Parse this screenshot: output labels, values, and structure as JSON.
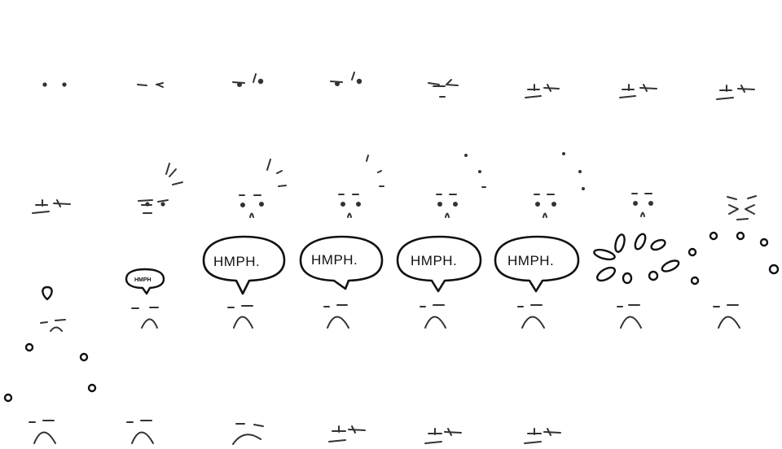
{
  "sprite_sheet": {
    "rows": 4,
    "columns": 8,
    "frame_count": 30,
    "colors": {
      "background": "#ffffff",
      "face_line": "#333333",
      "bubble_outline": "#111111"
    },
    "speech_bubble": {
      "text": "HMPH.",
      "small_text": "HMPH"
    }
  }
}
